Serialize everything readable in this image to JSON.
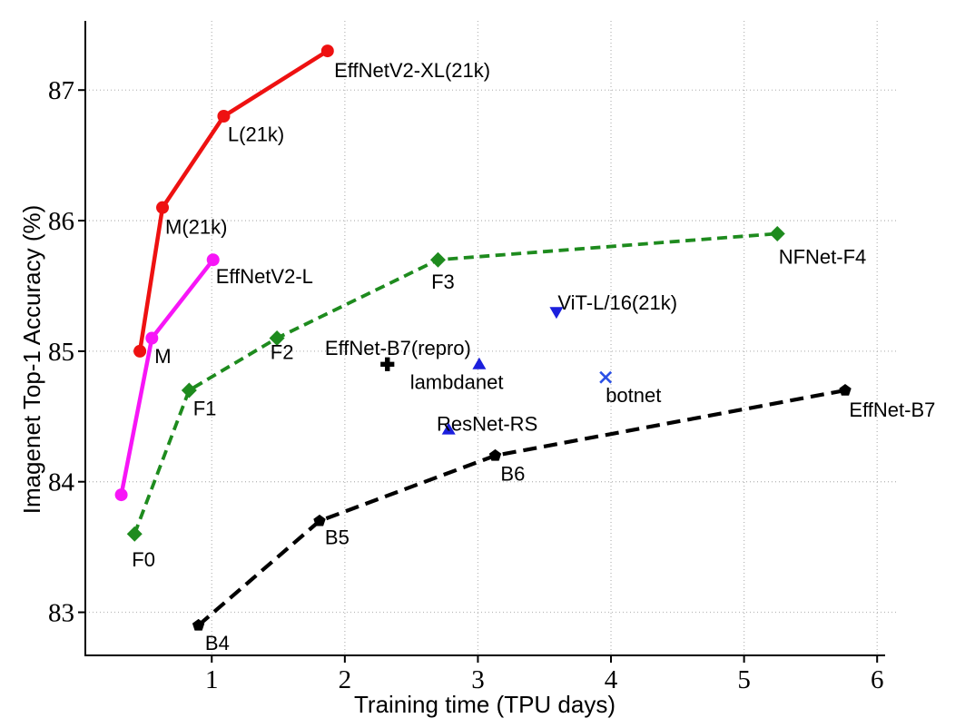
{
  "chart_data": {
    "type": "line",
    "title": "",
    "xlabel": "Training time (TPU days)",
    "ylabel": "Imagenet Top-1 Accuracy (%)",
    "xlim": [
      0.05,
      6.06
    ],
    "ylim": [
      82.67,
      87.53
    ],
    "xticks": [
      1,
      2,
      3,
      4,
      5,
      6
    ],
    "yticks": [
      83,
      84,
      85,
      86,
      87
    ],
    "grid": "dotted",
    "grid_color": "#bababa",
    "legend": "none",
    "series": [
      {
        "name": "EffNetV2(21k)",
        "color": "#ee1111",
        "line_style": "solid",
        "line_width": 4.5,
        "dash": [],
        "marker": "circle",
        "points": [
          [
            0.46,
            85.0
          ],
          [
            0.63,
            86.1
          ],
          [
            1.09,
            86.8
          ],
          [
            1.87,
            87.3
          ]
        ]
      },
      {
        "name": "EffNetV2",
        "color": "#f716f7",
        "line_style": "solid",
        "line_width": 4.5,
        "dash": [],
        "marker": "circle",
        "points": [
          [
            0.32,
            83.9
          ],
          [
            0.55,
            85.1
          ],
          [
            1.01,
            85.7
          ]
        ]
      },
      {
        "name": "NFNet",
        "color": "#1e8b1e",
        "line_style": "dashed",
        "line_width": 3.8,
        "dash": [
          11,
          6.5
        ],
        "marker": "diamond",
        "points": [
          [
            0.42,
            83.6
          ],
          [
            0.83,
            84.7
          ],
          [
            1.49,
            85.1
          ],
          [
            2.7,
            85.7
          ],
          [
            5.25,
            85.9
          ]
        ]
      },
      {
        "name": "EffNet",
        "color": "#000000",
        "line_style": "dashed",
        "line_width": 4.2,
        "dash": [
          15,
          8
        ],
        "marker": "pentagon",
        "points": [
          [
            0.9,
            82.9
          ],
          [
            1.81,
            83.7
          ],
          [
            3.13,
            84.2
          ],
          [
            5.76,
            84.7
          ]
        ]
      }
    ],
    "scatter": [
      {
        "name": "ViT-L/16(21k)",
        "marker": "triangle-down",
        "color": "#1b1fdd",
        "x": 3.59,
        "y": 85.3
      },
      {
        "name": "lambdanet",
        "marker": "triangle-up",
        "color": "#1b1fdd",
        "x": 3.01,
        "y": 84.9
      },
      {
        "name": "ResNet-RS",
        "marker": "triangle-up",
        "color": "#1b1fdd",
        "x": 2.78,
        "y": 84.4
      },
      {
        "name": "botnet",
        "marker": "x",
        "color": "#2b50e6",
        "x": 3.96,
        "y": 84.8
      },
      {
        "name": "EffNet-B7(repro)",
        "marker": "plus",
        "color": "#000000",
        "x": 2.32,
        "y": 84.9
      }
    ],
    "annotations": [
      {
        "text": "EffNetV2-XL(21k)",
        "x": 1.92,
        "y": 87.1
      },
      {
        "text": "L(21k)",
        "x": 1.12,
        "y": 86.61
      },
      {
        "text": "M(21k)",
        "x": 0.65,
        "y": 85.9
      },
      {
        "text": "M",
        "x": 0.57,
        "y": 84.91
      },
      {
        "text": "EffNetV2-L",
        "x": 1.03,
        "y": 85.52
      },
      {
        "text": "F0",
        "x": 0.4,
        "y": 83.35
      },
      {
        "text": "F1",
        "x": 0.86,
        "y": 84.51
      },
      {
        "text": "F2",
        "x": 1.44,
        "y": 84.94
      },
      {
        "text": "F3",
        "x": 2.65,
        "y": 85.48
      },
      {
        "text": "NFNet-F4",
        "x": 5.26,
        "y": 85.67
      },
      {
        "text": "B4",
        "x": 0.95,
        "y": 82.71
      },
      {
        "text": "B5",
        "x": 1.85,
        "y": 83.52
      },
      {
        "text": "B6",
        "x": 3.17,
        "y": 84.01
      },
      {
        "text": "EffNet-B7",
        "x": 5.79,
        "y": 84.5
      },
      {
        "text": "EffNet-B7(repro)",
        "x": 1.85,
        "y": 84.97
      },
      {
        "text": "lambdanet",
        "x": 2.49,
        "y": 84.71
      },
      {
        "text": "ResNet-RS",
        "x": 2.69,
        "y": 84.39
      },
      {
        "text": "ViT-L/16(21k)",
        "x": 3.6,
        "y": 85.32
      },
      {
        "text": "botnet",
        "x": 3.96,
        "y": 84.61
      }
    ]
  }
}
